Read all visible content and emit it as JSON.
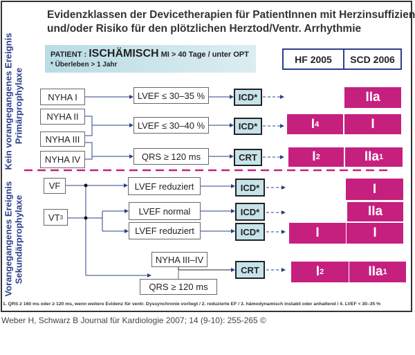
{
  "title": {
    "line1": "Evidenzklassen der Devicetherapien für PatientInnen mit Herzinsuffizienz",
    "line2": "und/oder Risiko für den plötzlichen Herztod/Ventr. Arrhythmie"
  },
  "patient": {
    "prefix": "PATIENT :",
    "type": "ISCHÄMISCH",
    "detail": "MI > 40 Tage / unter OPT",
    "note": "* Überleben > 1 Jahr"
  },
  "columns": {
    "hf": "HF 2005",
    "scd": "SCD 2006"
  },
  "sections": {
    "primary_l1": "Kein vorangegangenes Ereignis",
    "primary_l2": "Primärprophylaxe",
    "secondary_l1": "Vorangegangenes Ereignis",
    "secondary_l2": "Sekundärprophylaxe"
  },
  "primary": {
    "nyha1": "NYHA I",
    "nyha2": "NYHA II",
    "nyha3": "NYHA III",
    "nyha4": "NYHA IV",
    "cond1": "LVEF ≤ 30–35 %",
    "cond2": "LVEF ≤ 30–40 %",
    "cond3": "QRS ≥ 120 ms",
    "dev1": "ICD*",
    "dev2": "ICD*",
    "dev3": "CRT",
    "r1_scd": "IIa",
    "r2_hf": "I",
    "r2_hf_sup": "4",
    "r2_scd": "I",
    "r3_hf": "I",
    "r3_hf_sup": "2",
    "r3_scd": "IIa",
    "r3_scd_sup": "1"
  },
  "secondary": {
    "vf": "VF",
    "vt": "VT",
    "vt_sup": "3",
    "cond1": "LVEF reduziert",
    "cond2": "LVEF normal",
    "cond3": "LVEF reduziert",
    "cond4": "NYHA III–IV",
    "cond5": "QRS ≥ 120 ms",
    "dev1": "ICD*",
    "dev2": "ICD*",
    "dev3": "ICD*",
    "dev4": "CRT",
    "r1_scd": "I",
    "r2_scd": "IIa",
    "r3_hf": "I",
    "r3_scd": "I",
    "r4_hf": "I",
    "r4_hf_sup": "2",
    "r4_scd": "IIa",
    "r4_scd_sup": "1"
  },
  "footnote": "1. QRS ≥ 160 ms oder ≥ 120 ms, wenn weitere Evidenz für ventr. Dyssynchronie vorliegt / 2. reduzierte EF / 3. hämodynamisch instabil oder anhaltend / 4. LVEF < 30–35 %",
  "citation": "Weber H, Schwarz B Journal für Kardiologie 2007; 14 (9-10): 255-265 ©",
  "colors": {
    "class_fill": "#c6207f",
    "device_fill": "#c7e3ea",
    "label": "#2b3f8c"
  }
}
